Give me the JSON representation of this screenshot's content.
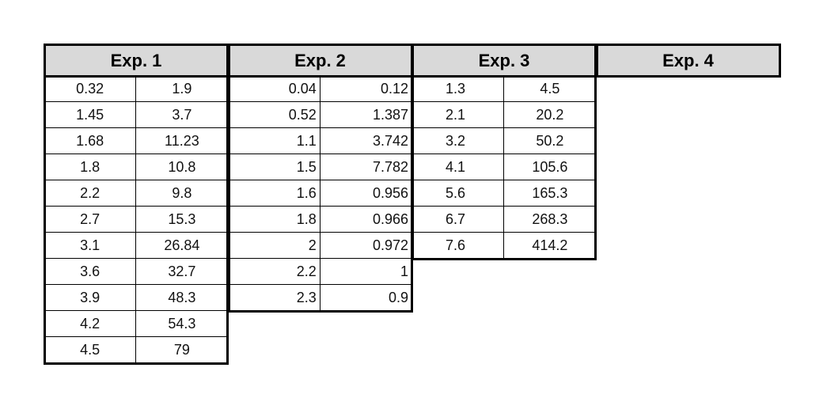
{
  "groups": [
    {
      "title": "Exp. 1",
      "rows": [
        [
          "0.32",
          "1.9"
        ],
        [
          "1.45",
          "3.7"
        ],
        [
          "1.68",
          "11.23"
        ],
        [
          "1.8",
          "10.8"
        ],
        [
          "2.2",
          "9.8"
        ],
        [
          "2.7",
          "15.3"
        ],
        [
          "3.1",
          "26.84"
        ],
        [
          "3.6",
          "32.7"
        ],
        [
          "3.9",
          "48.3"
        ],
        [
          "4.2",
          "54.3"
        ],
        [
          "4.5",
          "79"
        ]
      ]
    },
    {
      "title": "Exp. 2",
      "rows": [
        [
          "0.04",
          "0.12"
        ],
        [
          "0.52",
          "1.387"
        ],
        [
          "1.1",
          "3.742"
        ],
        [
          "1.5",
          "7.782"
        ],
        [
          "1.6",
          "0.956"
        ],
        [
          "1.8",
          "0.966"
        ],
        [
          "2",
          "0.972"
        ],
        [
          "2.2",
          "1"
        ],
        [
          "2.3",
          "0.9"
        ]
      ]
    },
    {
      "title": "Exp. 3",
      "rows": [
        [
          "1.3",
          "4.5"
        ],
        [
          "2.1",
          "20.2"
        ],
        [
          "3.2",
          "50.2"
        ],
        [
          "4.1",
          "105.6"
        ],
        [
          "5.6",
          "165.3"
        ],
        [
          "6.7",
          "268.3"
        ],
        [
          "7.6",
          "414.2"
        ]
      ]
    },
    {
      "title": "Exp. 4",
      "rows": []
    }
  ]
}
